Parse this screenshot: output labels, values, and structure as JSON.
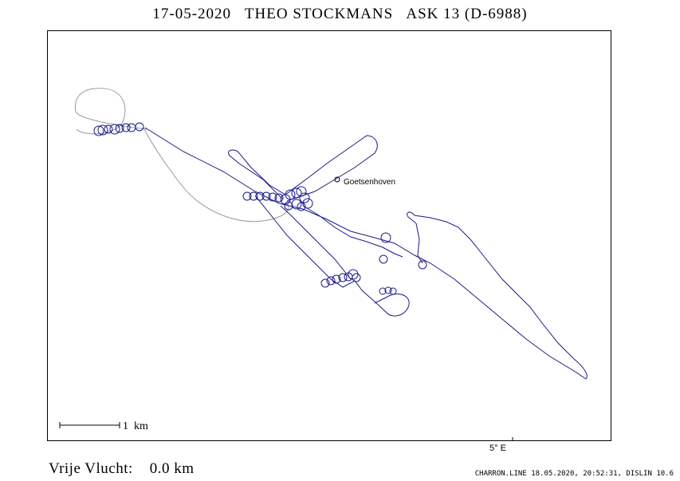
{
  "header": {
    "title": "17-05-2020   THEO STOCKMANS   ASK 13 (D-6988)"
  },
  "map": {
    "place": "Goetsenhoven",
    "scale_label": "1  km",
    "longitude_label": "5° E",
    "colors": {
      "track": "#1a1a8c",
      "glide": "#999999",
      "frame": "#000000"
    }
  },
  "footer": {
    "left": "Vrije Vlucht:    0.0 km",
    "right": "CHARRON.LINE 18.05.2020, 20:52:31, DISLIN 10.6"
  }
}
